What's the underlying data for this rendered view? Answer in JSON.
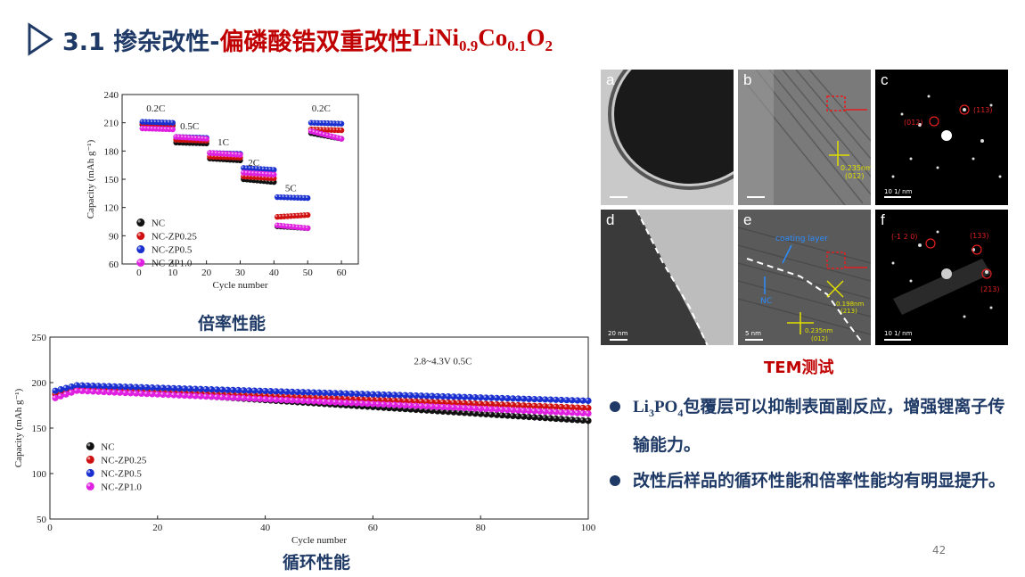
{
  "title": {
    "number": "3.1 掺杂改性-",
    "subject": "偏磷酸锆双重改性",
    "formula_base": "LiNi",
    "ni_sub": "0.9",
    "co": "Co",
    "co_sub": "0.1",
    "o": "O",
    "o_sub": "2"
  },
  "rate_caption": "倍率性能",
  "cycle_caption": "循环性能",
  "tem_caption": "TEM测试",
  "tem_panels": {
    "a": {
      "label": "a",
      "scale": "20 nm"
    },
    "b": {
      "label": "b",
      "annot": "0.235nm",
      "annot2": "(012)"
    },
    "c": {
      "label": "c",
      "spots": [
        "(012)",
        "(113)"
      ],
      "scale": "10 1/ nm"
    },
    "d": {
      "label": "d",
      "scale": "20 nm"
    },
    "e": {
      "label": "e",
      "coating": "coating layer",
      "nc": "NC",
      "annot1": "0.198nm",
      "annot1b": "(213)",
      "annot2": "0.235nm",
      "annot2b": "(012)",
      "scale": "5 nm"
    },
    "f": {
      "label": "f",
      "spots": [
        "(-1 2 0)",
        "(133)",
        "(213)"
      ],
      "scale": "10 1/ nm"
    }
  },
  "bullets": {
    "b1_formula": "Li",
    "b1_sub1": "3",
    "b1_formula2": "PO",
    "b1_sub2": "4",
    "b1_text": "包覆层可以抑制表面副反应，增强锂离子传输能力。",
    "b2_text": "改性后样品的循环性能和倍率性能均有明显提升。"
  },
  "page_number": "42",
  "colors": {
    "NC": "#111111",
    "NC-ZP0.25": "#d01010",
    "NC-ZP0.5": "#1a2fd0",
    "NC-ZP1.0": "#e020e0",
    "title_blue": "#1f3a66",
    "title_red": "#c00000"
  },
  "chart_data": [
    {
      "type": "scatter",
      "xlabel": "Cycle number",
      "ylabel": "Capacity (mAh g⁻¹)",
      "xlim": [
        -5,
        65
      ],
      "ylim": [
        60,
        240
      ],
      "xticks": [
        0,
        10,
        20,
        30,
        40,
        50,
        60
      ],
      "yticks": [
        60,
        90,
        120,
        150,
        180,
        210,
        240
      ],
      "rate_labels": [
        "0.2C",
        "0.5C",
        "1C",
        "2C",
        "5C",
        "0.2C"
      ],
      "legend": [
        "NC",
        "NC-ZP0.25",
        "NC-ZP0.5",
        "NC-ZP1.0"
      ],
      "legend_position": "lower-left",
      "series": [
        {
          "name": "NC",
          "segments": [
            [
              208,
              207
            ],
            [
              189,
              188
            ],
            [
              172,
              170
            ],
            [
              150,
              147
            ],
            [
              100,
              98
            ],
            [
              199,
              193
            ]
          ]
        },
        {
          "name": "NC-ZP0.25",
          "segments": [
            [
              209,
              208
            ],
            [
              192,
              191
            ],
            [
              174,
              173
            ],
            [
              153,
              151
            ],
            [
              110,
              112
            ],
            [
              203,
              202
            ]
          ]
        },
        {
          "name": "NC-ZP0.5",
          "segments": [
            [
              211,
              210
            ],
            [
              195,
              194
            ],
            [
              178,
              177
            ],
            [
              162,
              160
            ],
            [
              131,
              130
            ],
            [
              210,
              209
            ]
          ]
        },
        {
          "name": "NC-ZP1.0",
          "segments": [
            [
              204,
              203
            ],
            [
              195,
              193
            ],
            [
              178,
              176
            ],
            [
              157,
              155
            ],
            [
              101,
              98
            ],
            [
              201,
              193
            ]
          ]
        }
      ]
    },
    {
      "type": "scatter",
      "xlabel": "Cycle number",
      "ylabel": "Capacity (mAh g⁻¹)",
      "xlim": [
        0,
        100
      ],
      "ylim": [
        50,
        250
      ],
      "xticks": [
        0,
        20,
        40,
        60,
        80,
        100
      ],
      "yticks": [
        50,
        100,
        150,
        200,
        250
      ],
      "annotation": "2.8~4.3V  0.5C",
      "legend": [
        "NC",
        "NC-ZP0.25",
        "NC-ZP0.5",
        "NC-ZP1.0"
      ],
      "legend_position": "lower-left",
      "series": [
        {
          "name": "NC",
          "start": 188,
          "peak": 194,
          "end": 158
        },
        {
          "name": "NC-ZP0.25",
          "start": 187,
          "peak": 194,
          "end": 172
        },
        {
          "name": "NC-ZP0.5",
          "start": 191,
          "peak": 197,
          "end": 180
        },
        {
          "name": "NC-ZP1.0",
          "start": 183,
          "peak": 191,
          "end": 166
        }
      ]
    }
  ]
}
